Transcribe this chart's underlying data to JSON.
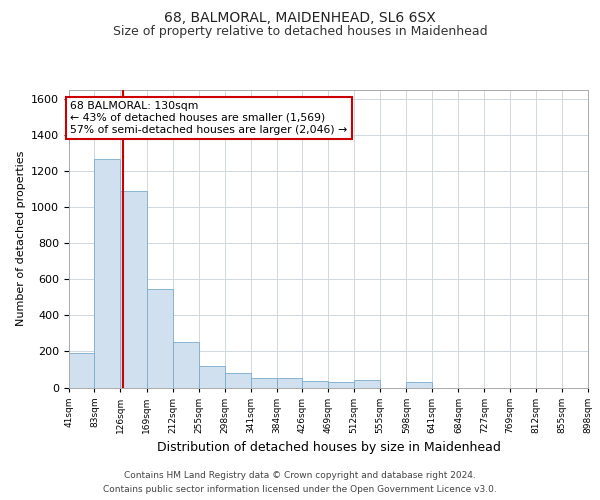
{
  "title": "68, BALMORAL, MAIDENHEAD, SL6 6SX",
  "subtitle": "Size of property relative to detached houses in Maidenhead",
  "xlabel": "Distribution of detached houses by size in Maidenhead",
  "ylabel": "Number of detached properties",
  "footer_line1": "Contains HM Land Registry data © Crown copyright and database right 2024.",
  "footer_line2": "Contains public sector information licensed under the Open Government Licence v3.0.",
  "property_size": 130,
  "annotation_line1": "68 BALMORAL: 130sqm",
  "annotation_line2": "← 43% of detached houses are smaller (1,569)",
  "annotation_line3": "57% of semi-detached houses are larger (2,046) →",
  "bar_color": "#d0e0ef",
  "bar_edge_color": "#7aaacb",
  "vline_color": "#cc0000",
  "annotation_box_edge": "#cc0000",
  "grid_color": "#d0d8e0",
  "background_color": "#ffffff",
  "bin_edges": [
    41,
    83,
    126,
    169,
    212,
    255,
    298,
    341,
    384,
    426,
    469,
    512,
    555,
    598,
    641,
    684,
    727,
    769,
    812,
    855,
    898
  ],
  "bin_labels": [
    "41sqm",
    "83sqm",
    "126sqm",
    "169sqm",
    "212sqm",
    "255sqm",
    "298sqm",
    "341sqm",
    "384sqm",
    "426sqm",
    "469sqm",
    "512sqm",
    "555sqm",
    "598sqm",
    "641sqm",
    "684sqm",
    "727sqm",
    "769sqm",
    "812sqm",
    "855sqm",
    "898sqm"
  ],
  "bar_heights": [
    190,
    1270,
    1090,
    545,
    255,
    120,
    80,
    55,
    50,
    35,
    30,
    40,
    0,
    30,
    0,
    0,
    0,
    0,
    0,
    0
  ],
  "ylim": [
    0,
    1650
  ],
  "yticks": [
    0,
    200,
    400,
    600,
    800,
    1000,
    1200,
    1400,
    1600
  ],
  "title_fontsize": 10,
  "subtitle_fontsize": 9,
  "ylabel_fontsize": 8,
  "xlabel_fontsize": 9
}
